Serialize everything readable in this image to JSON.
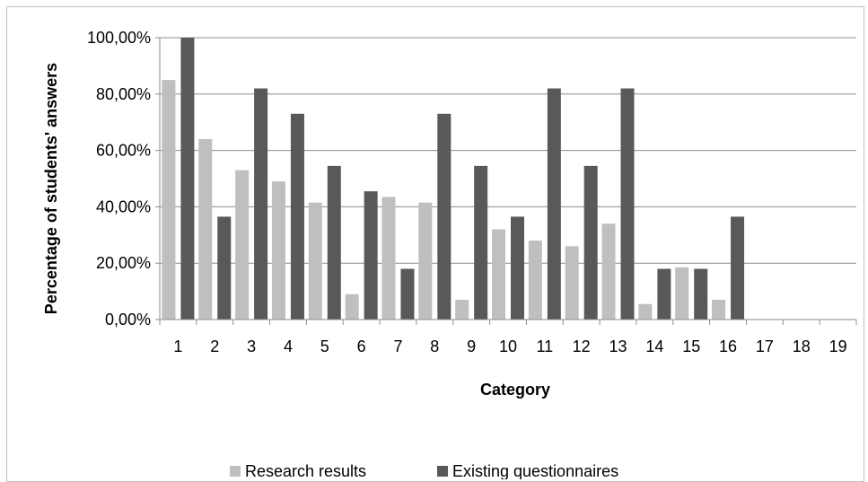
{
  "chart_data": {
    "type": "bar",
    "title": "",
    "xlabel": "Category",
    "ylabel": "Percentage of students' answers",
    "categories": [
      "1",
      "2",
      "3",
      "4",
      "5",
      "6",
      "7",
      "8",
      "9",
      "10",
      "11",
      "12",
      "13",
      "14",
      "15",
      "16",
      "17",
      "18",
      "19"
    ],
    "y_ticks": [
      "0,00%",
      "20,00%",
      "40,00%",
      "60,00%",
      "80,00%",
      "100,00%"
    ],
    "ylim": [
      0,
      100
    ],
    "grid": true,
    "legend_position": "bottom",
    "series": [
      {
        "name": "Research results",
        "color": "#bfbfbf",
        "values": [
          85,
          64,
          53,
          49,
          41.5,
          9,
          43.5,
          41.5,
          7,
          32,
          28,
          26,
          34,
          5.5,
          18.5,
          7,
          null,
          null,
          null
        ]
      },
      {
        "name": "Existing questionnaires",
        "color": "#595959",
        "values": [
          100,
          36.5,
          82,
          73,
          54.5,
          45.5,
          18,
          73,
          54.5,
          36.5,
          82,
          54.5,
          82,
          18,
          18,
          36.5,
          null,
          null,
          null
        ]
      }
    ]
  }
}
